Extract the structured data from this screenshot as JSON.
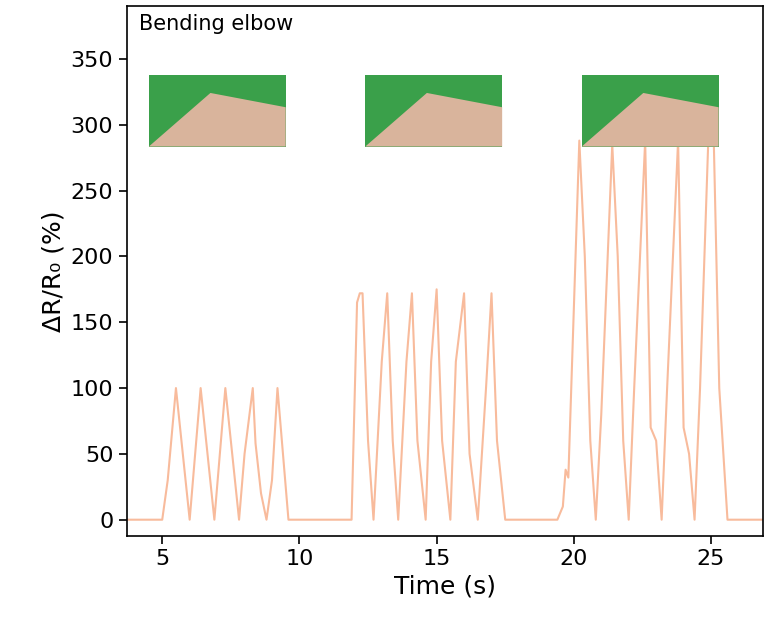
{
  "chart_data": {
    "type": "line",
    "annotation": "Bending elbow",
    "x_label": "Time (s)",
    "y_label": "ΔR/R₀ (%)",
    "xlim": [
      3.7,
      26.9
    ],
    "xticks": [
      5,
      10,
      15,
      20,
      25
    ],
    "ylim": [
      -12,
      390
    ],
    "yticks": [
      0,
      50,
      100,
      150,
      200,
      250,
      300,
      350
    ],
    "grid": false,
    "series": [
      {
        "name": "Bending elbow",
        "color": "#f8bb9c",
        "line_style": "solid",
        "x": [
          3.7,
          5.0,
          5.2,
          5.5,
          5.7,
          6.0,
          6.2,
          6.4,
          6.6,
          6.9,
          7.1,
          7.3,
          7.5,
          7.8,
          8.0,
          8.3,
          8.4,
          8.6,
          8.8,
          9.0,
          9.2,
          9.4,
          9.6,
          11.9,
          12.1,
          12.2,
          12.3,
          12.5,
          12.7,
          13.0,
          13.2,
          13.4,
          13.6,
          13.9,
          14.1,
          14.3,
          14.6,
          14.8,
          15.0,
          15.2,
          15.5,
          15.7,
          16.0,
          16.2,
          16.5,
          16.8,
          17.0,
          17.2,
          17.5,
          19.4,
          19.6,
          19.7,
          19.8,
          20.2,
          20.4,
          20.6,
          20.8,
          21.0,
          21.4,
          21.6,
          21.8,
          22.0,
          22.2,
          22.6,
          22.8,
          23.0,
          23.2,
          23.4,
          23.8,
          24.0,
          24.2,
          24.4,
          24.6,
          24.9,
          25.1,
          25.3,
          25.6,
          26.9
        ],
        "values": [
          0,
          0,
          30,
          100,
          60,
          0,
          50,
          100,
          60,
          0,
          50,
          100,
          60,
          0,
          50,
          100,
          58,
          20,
          0,
          30,
          100,
          50,
          0,
          0,
          165,
          172,
          172,
          60,
          0,
          120,
          172,
          60,
          0,
          120,
          172,
          60,
          0,
          120,
          175,
          60,
          0,
          120,
          172,
          50,
          0,
          100,
          172,
          60,
          0,
          0,
          10,
          38,
          32,
          288,
          200,
          60,
          0,
          80,
          285,
          200,
          60,
          0,
          100,
          288,
          70,
          60,
          0,
          100,
          288,
          70,
          50,
          0,
          100,
          288,
          288,
          100,
          0,
          0
        ]
      }
    ]
  }
}
